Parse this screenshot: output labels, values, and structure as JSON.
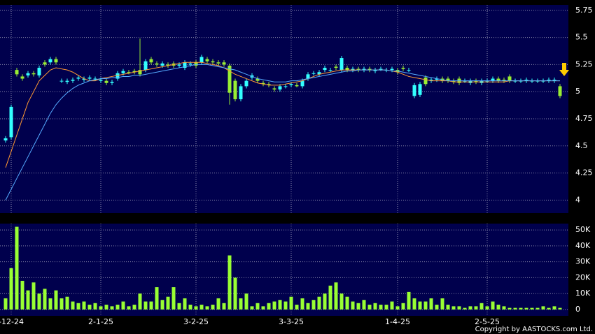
{
  "chart_data": [
    {
      "type": "candlestick",
      "up_color": "#33ffff",
      "down_color": "#99ee33",
      "ylim": [
        3.88,
        5.8
      ],
      "yticks": [
        4,
        4.25,
        4.5,
        4.75,
        5,
        5.25,
        5.5,
        5.75
      ],
      "grid": true,
      "open": [
        4.55,
        4.58,
        5.2,
        5.14,
        5.15,
        5.17,
        5.15,
        5.27,
        5.27,
        5.3,
        5.1,
        5.09,
        5.1,
        5.12,
        5.11,
        5.12,
        5.12,
        5.1,
        5.1,
        5.08,
        5.12,
        5.17,
        5.18,
        5.19,
        5.2,
        5.2,
        5.3,
        5.26,
        5.24,
        5.25,
        5.26,
        5.24,
        5.22,
        5.25,
        5.27,
        5.27,
        5.3,
        5.28,
        5.27,
        5.27,
        5.24,
        5.1,
        4.93,
        5.05,
        5.13,
        5.12,
        5.08,
        5.07,
        5.03,
        5.02,
        5.05,
        5.06,
        5.06,
        5.05,
        5.12,
        5.17,
        5.16,
        5.2,
        5.2,
        5.23,
        5.2,
        5.22,
        5.2,
        5.21,
        5.2,
        5.21,
        5.19,
        5.21,
        5.2,
        5.2,
        5.2,
        5.22,
        5.2,
        4.96,
        4.97,
        5.13,
        5.1,
        5.11,
        5.12,
        5.12,
        5.1,
        5.12,
        5.1,
        5.08,
        5.1,
        5.08,
        5.1,
        5.1,
        5.12,
        5.11,
        5.14,
        5.1,
        5.1,
        5.1,
        5.1,
        5.1,
        5.1,
        5.1,
        5.1,
        5.05
      ],
      "high": [
        4.59,
        4.88,
        5.22,
        5.16,
        5.19,
        5.19,
        5.24,
        5.29,
        5.32,
        5.32,
        5.12,
        5.12,
        5.13,
        5.15,
        5.14,
        5.15,
        5.14,
        5.13,
        5.12,
        5.11,
        5.19,
        5.21,
        5.2,
        5.21,
        5.49,
        5.3,
        5.32,
        5.28,
        5.28,
        5.27,
        5.28,
        5.27,
        5.29,
        5.28,
        5.29,
        5.34,
        5.32,
        5.3,
        5.29,
        5.29,
        5.26,
        5.12,
        5.07,
        5.12,
        5.17,
        5.14,
        5.1,
        5.09,
        5.05,
        5.07,
        5.07,
        5.09,
        5.08,
        5.12,
        5.18,
        5.19,
        5.2,
        5.24,
        5.22,
        5.25,
        5.33,
        5.24,
        5.23,
        5.23,
        5.23,
        5.23,
        5.22,
        5.23,
        5.22,
        5.23,
        5.22,
        5.24,
        5.22,
        5.08,
        5.09,
        5.15,
        5.13,
        5.14,
        5.14,
        5.14,
        5.12,
        5.14,
        5.12,
        5.12,
        5.12,
        5.12,
        5.12,
        5.14,
        5.14,
        5.13,
        5.16,
        5.12,
        5.12,
        5.13,
        5.12,
        5.12,
        5.12,
        5.13,
        5.13,
        5.07
      ],
      "low": [
        4.53,
        4.56,
        5.14,
        5.1,
        5.13,
        5.14,
        5.13,
        5.23,
        5.25,
        5.25,
        5.08,
        5.07,
        5.08,
        5.1,
        5.09,
        5.1,
        5.1,
        5.08,
        5.06,
        5.06,
        5.1,
        5.15,
        5.16,
        5.16,
        5.14,
        5.18,
        5.25,
        5.23,
        5.22,
        5.22,
        5.22,
        5.22,
        5.2,
        5.23,
        5.22,
        5.25,
        5.26,
        5.25,
        5.24,
        5.23,
        4.88,
        4.91,
        4.91,
        5.03,
        5.11,
        5.08,
        5.05,
        5.04,
        5.0,
        5.0,
        5.03,
        5.04,
        5.04,
        5.03,
        5.1,
        5.15,
        5.14,
        5.18,
        5.18,
        5.2,
        5.18,
        5.18,
        5.18,
        5.18,
        5.18,
        5.18,
        5.17,
        5.19,
        5.18,
        5.18,
        5.16,
        5.19,
        5.18,
        4.94,
        4.95,
        5.05,
        5.08,
        5.09,
        5.08,
        5.08,
        5.07,
        5.06,
        5.08,
        5.06,
        5.07,
        5.06,
        5.08,
        5.08,
        5.08,
        5.08,
        5.08,
        5.08,
        5.08,
        5.08,
        5.08,
        5.08,
        5.08,
        5.08,
        5.08,
        4.94
      ],
      "close": [
        4.57,
        4.86,
        5.16,
        5.12,
        5.17,
        5.16,
        5.22,
        5.25,
        5.3,
        5.27,
        5.1,
        5.1,
        5.11,
        5.13,
        5.12,
        5.13,
        5.12,
        5.11,
        5.08,
        5.09,
        5.17,
        5.19,
        5.17,
        5.18,
        5.16,
        5.28,
        5.27,
        5.25,
        5.26,
        5.24,
        5.24,
        5.25,
        5.27,
        5.26,
        5.24,
        5.32,
        5.28,
        5.27,
        5.26,
        5.25,
        4.99,
        4.93,
        5.05,
        5.1,
        5.15,
        5.1,
        5.07,
        5.06,
        5.02,
        5.05,
        5.05,
        5.07,
        5.05,
        5.1,
        5.16,
        5.17,
        5.18,
        5.22,
        5.2,
        5.22,
        5.31,
        5.2,
        5.21,
        5.2,
        5.21,
        5.2,
        5.2,
        5.21,
        5.2,
        5.21,
        5.18,
        5.21,
        5.2,
        5.06,
        5.07,
        5.07,
        5.11,
        5.12,
        5.1,
        5.1,
        5.09,
        5.08,
        5.1,
        5.1,
        5.09,
        5.1,
        5.1,
        5.12,
        5.1,
        5.1,
        5.1,
        5.1,
        5.1,
        5.11,
        5.1,
        5.1,
        5.1,
        5.11,
        5.11,
        4.96
      ],
      "lines": [
        {
          "color": "#ff9933",
          "values": [
            4.3,
            4.45,
            4.6,
            4.75,
            4.9,
            5.0,
            5.1,
            5.15,
            5.2,
            5.22,
            5.21,
            5.2,
            5.18,
            5.15,
            5.12,
            5.1,
            5.1,
            5.12,
            5.13,
            5.14,
            5.15,
            5.16,
            5.17,
            5.18,
            5.19,
            5.2,
            5.21,
            5.22,
            5.23,
            5.24,
            5.25,
            5.26,
            5.27,
            5.27,
            5.27,
            5.27,
            5.26,
            5.25,
            5.24,
            5.22,
            5.19,
            5.16,
            5.14,
            5.12,
            5.1,
            5.08,
            5.07,
            5.06,
            5.06,
            5.06,
            5.07,
            5.08,
            5.09,
            5.1,
            5.12,
            5.14,
            5.16,
            5.17,
            5.18,
            5.19,
            5.2,
            5.2,
            5.2,
            5.2,
            5.2,
            5.2,
            5.2,
            5.2,
            5.2,
            5.19,
            5.18,
            5.16,
            5.14,
            5.13,
            5.12,
            5.11,
            5.1,
            5.1,
            5.1,
            5.1,
            5.09,
            5.09,
            5.09,
            5.09,
            5.09,
            5.09,
            5.09,
            5.09,
            5.09,
            5.09,
            5.1,
            5.1,
            5.1,
            5.1,
            5.1,
            5.1,
            5.1,
            5.1,
            5.1,
            5.1
          ]
        },
        {
          "color": "#55aaff",
          "values": [
            4.0,
            4.1,
            4.2,
            4.3,
            4.4,
            4.5,
            4.6,
            4.7,
            4.8,
            4.88,
            4.94,
            4.99,
            5.03,
            5.06,
            5.08,
            5.1,
            5.11,
            5.12,
            5.12,
            5.13,
            5.13,
            5.14,
            5.14,
            5.15,
            5.15,
            5.16,
            5.17,
            5.18,
            5.19,
            5.2,
            5.21,
            5.22,
            5.23,
            5.24,
            5.25,
            5.25,
            5.25,
            5.24,
            5.23,
            5.22,
            5.21,
            5.2,
            5.18,
            5.16,
            5.14,
            5.12,
            5.11,
            5.1,
            5.09,
            5.09,
            5.09,
            5.1,
            5.1,
            5.11,
            5.12,
            5.13,
            5.14,
            5.15,
            5.16,
            5.17,
            5.18,
            5.19,
            5.19,
            5.2,
            5.2,
            5.2,
            5.2,
            5.2,
            5.2,
            5.19,
            5.19,
            5.18,
            5.17,
            5.16,
            5.15,
            5.14,
            5.13,
            5.12,
            5.11,
            5.1,
            5.1,
            5.1,
            5.1,
            5.1,
            5.1,
            5.1,
            5.1,
            5.1,
            5.1,
            5.1,
            5.1,
            5.1,
            5.1,
            5.1,
            5.1,
            5.1,
            5.1,
            5.1,
            5.1,
            5.1
          ]
        }
      ]
    },
    {
      "type": "bar",
      "color": "#99ff33",
      "ylim": [
        -4000,
        54000
      ],
      "yticks": [
        0,
        {
          "value": 10000,
          "label": "10K"
        },
        {
          "value": 20000,
          "label": "20K"
        },
        {
          "value": 30000,
          "label": "30K"
        },
        {
          "value": 40000,
          "label": "40K"
        },
        {
          "value": 50000,
          "label": "50K"
        }
      ],
      "grid": true,
      "categories": [
        null,
        "-12-24",
        null,
        null,
        null,
        null,
        null,
        null,
        null,
        null,
        null,
        null,
        null,
        null,
        null,
        null,
        null,
        "2-1-25",
        null,
        null,
        null,
        null,
        null,
        null,
        null,
        null,
        null,
        null,
        null,
        null,
        null,
        null,
        null,
        null,
        "3-2-25",
        null,
        null,
        null,
        null,
        null,
        null,
        null,
        null,
        null,
        null,
        null,
        null,
        null,
        null,
        null,
        null,
        "3-3-25",
        null,
        null,
        null,
        null,
        null,
        null,
        null,
        null,
        null,
        null,
        null,
        null,
        null,
        null,
        null,
        null,
        null,
        null,
        "1-4-25",
        null,
        null,
        null,
        null,
        null,
        null,
        null,
        null,
        null,
        null,
        null,
        null,
        null,
        null,
        null,
        "2-5-25",
        null,
        null,
        null,
        null,
        null,
        null,
        null,
        null,
        null,
        null,
        null,
        null,
        null
      ],
      "values": [
        7000,
        26000,
        52000,
        18000,
        12000,
        17000,
        10000,
        13000,
        7000,
        12000,
        7000,
        8000,
        5000,
        4000,
        5000,
        3000,
        4000,
        2000,
        3000,
        2000,
        3000,
        5000,
        2000,
        3000,
        10000,
        5000,
        5000,
        14000,
        6000,
        8000,
        14000,
        4000,
        7000,
        3000,
        2000,
        3000,
        2000,
        3000,
        7000,
        4000,
        34000,
        20000,
        7000,
        10000,
        2000,
        4000,
        2000,
        4000,
        5000,
        6000,
        5000,
        8000,
        3000,
        7000,
        4000,
        6000,
        8000,
        10000,
        15000,
        17000,
        10000,
        8000,
        5000,
        4000,
        6000,
        3000,
        4000,
        3000,
        3000,
        5000,
        2000,
        4000,
        11000,
        7000,
        5000,
        5000,
        7000,
        3000,
        7000,
        3000,
        2000,
        2000,
        1000,
        2000,
        2000,
        4000,
        2000,
        5000,
        3000,
        2000,
        1000,
        1000,
        1000,
        1000,
        1000,
        1000,
        2000,
        1000,
        2000,
        1000
      ]
    }
  ],
  "copyright": "Copyright by AASTOCKS.com Ltd."
}
